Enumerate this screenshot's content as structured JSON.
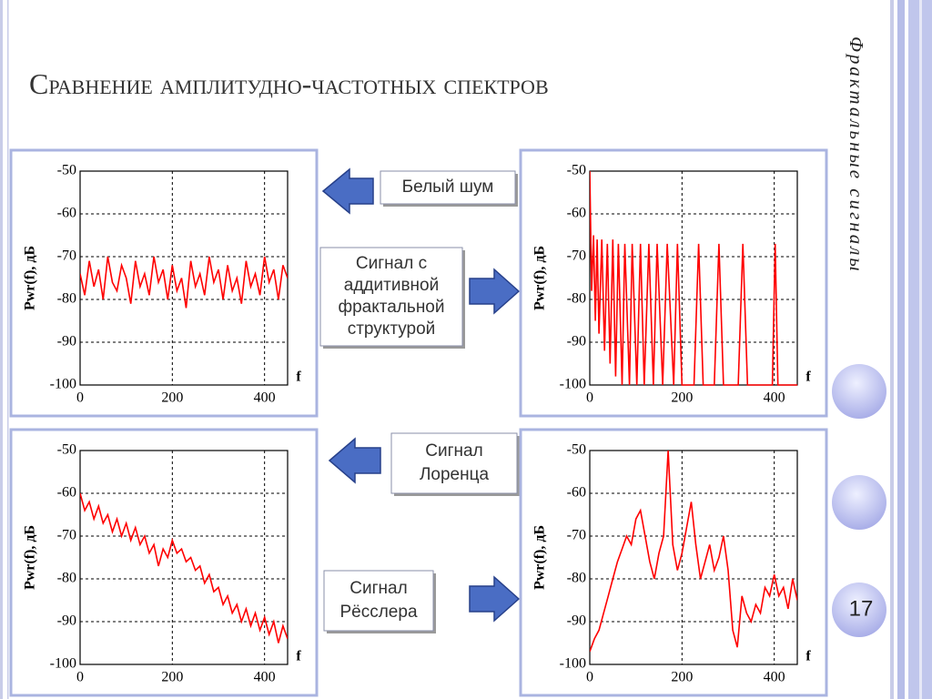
{
  "slide": {
    "title": "Сравнение амплитудно-частотных спектров",
    "side_title": "Фрактальные сигналы",
    "page_number": 17
  },
  "labels": [
    {
      "lines": [
        "Белый шум"
      ]
    },
    {
      "lines": [
        "Сигнал с",
        "аддитивной",
        "фрактальной",
        "структурой"
      ]
    },
    {
      "lines": [
        "Сигнал",
        "Лоренца"
      ]
    },
    {
      "lines": [
        "Сигнал",
        "Рёсслера"
      ]
    }
  ],
  "chart_data": [
    {
      "type": "line",
      "ylabel": "Pwr(f), дБ",
      "xlabel": "f",
      "color": "#ff0000",
      "grid": true,
      "xlim": [
        0,
        450
      ],
      "ylim": [
        -100,
        -50
      ],
      "xticks": [
        0,
        200,
        400
      ],
      "yticks": [
        -100,
        -90,
        -80,
        -70,
        -60,
        -50
      ],
      "x": [
        0,
        10,
        20,
        30,
        40,
        50,
        60,
        70,
        80,
        90,
        100,
        110,
        120,
        130,
        140,
        150,
        160,
        170,
        180,
        190,
        200,
        210,
        220,
        230,
        240,
        250,
        260,
        270,
        280,
        290,
        300,
        310,
        320,
        330,
        340,
        350,
        360,
        370,
        380,
        390,
        400,
        410,
        420,
        430,
        440,
        450
      ],
      "values": [
        -74,
        -79,
        -71,
        -77,
        -73,
        -80,
        -70,
        -76,
        -78,
        -72,
        -75,
        -81,
        -71,
        -77,
        -74,
        -79,
        -70,
        -76,
        -73,
        -80,
        -72,
        -78,
        -75,
        -82,
        -71,
        -77,
        -74,
        -79,
        -70,
        -76,
        -73,
        -80,
        -72,
        -78,
        -75,
        -81,
        -71,
        -77,
        -74,
        -79,
        -70,
        -76,
        -73,
        -80,
        -72,
        -75
      ]
    },
    {
      "type": "line",
      "ylabel": "Pwr(f), дБ",
      "xlabel": "f",
      "color": "#ff0000",
      "grid": true,
      "xlim": [
        0,
        450
      ],
      "ylim": [
        -100,
        -50
      ],
      "xticks": [
        0,
        200,
        400
      ],
      "yticks": [
        -100,
        -90,
        -80,
        -70,
        -60,
        -50
      ],
      "x": [
        0,
        4,
        8,
        12,
        16,
        20,
        26,
        32,
        38,
        44,
        50,
        56,
        62,
        70,
        76,
        86,
        92,
        102,
        110,
        118,
        128,
        138,
        146,
        158,
        168,
        182,
        190,
        200,
        226,
        236,
        246,
        270,
        280,
        290,
        322,
        332,
        342,
        396,
        402,
        408,
        450
      ],
      "values": [
        -50,
        -78,
        -65,
        -85,
        -66,
        -88,
        -66,
        -92,
        -67,
        -95,
        -66,
        -98,
        -67,
        -100,
        -67,
        -100,
        -67,
        -100,
        -67,
        -100,
        -67,
        -100,
        -67,
        -100,
        -67,
        -100,
        -67,
        -100,
        -100,
        -67,
        -100,
        -100,
        -67,
        -100,
        -100,
        -67,
        -100,
        -100,
        -67,
        -100,
        -100
      ]
    },
    {
      "type": "line",
      "ylabel": "Pwr(f), дБ",
      "xlabel": "f",
      "color": "#ff0000",
      "grid": true,
      "xlim": [
        0,
        450
      ],
      "ylim": [
        -100,
        -50
      ],
      "xticks": [
        0,
        200,
        400
      ],
      "yticks": [
        -100,
        -90,
        -80,
        -70,
        -60,
        -50
      ],
      "x": [
        0,
        10,
        20,
        30,
        40,
        50,
        60,
        70,
        80,
        90,
        100,
        110,
        120,
        130,
        140,
        150,
        160,
        170,
        180,
        190,
        200,
        210,
        220,
        230,
        240,
        250,
        260,
        270,
        280,
        290,
        300,
        310,
        320,
        330,
        340,
        350,
        360,
        370,
        380,
        390,
        400,
        410,
        420,
        430,
        440,
        450
      ],
      "values": [
        -60,
        -64,
        -62,
        -66,
        -63,
        -67,
        -65,
        -69,
        -66,
        -70,
        -67,
        -71,
        -68,
        -72,
        -70,
        -74,
        -72,
        -77,
        -73,
        -75,
        -71,
        -74,
        -73,
        -76,
        -75,
        -78,
        -77,
        -81,
        -79,
        -83,
        -82,
        -86,
        -84,
        -88,
        -86,
        -90,
        -87,
        -91,
        -88,
        -92,
        -89,
        -93,
        -90,
        -95,
        -91,
        -94
      ]
    },
    {
      "type": "line",
      "ylabel": "Pwr(f), дБ",
      "xlabel": "f",
      "color": "#ff0000",
      "grid": true,
      "xlim": [
        0,
        450
      ],
      "ylim": [
        -100,
        -50
      ],
      "xticks": [
        0,
        200,
        400
      ],
      "yticks": [
        -100,
        -90,
        -80,
        -70,
        -60,
        -50
      ],
      "x": [
        0,
        10,
        20,
        30,
        40,
        50,
        60,
        70,
        80,
        90,
        100,
        110,
        120,
        130,
        140,
        150,
        160,
        170,
        180,
        190,
        200,
        210,
        220,
        230,
        240,
        250,
        260,
        270,
        280,
        290,
        300,
        310,
        320,
        330,
        340,
        350,
        360,
        370,
        380,
        390,
        400,
        410,
        420,
        430,
        440,
        450
      ],
      "values": [
        -97,
        -94,
        -92,
        -88,
        -84,
        -80,
        -76,
        -73,
        -70,
        -72,
        -66,
        -64,
        -70,
        -76,
        -80,
        -74,
        -70,
        -50,
        -72,
        -78,
        -74,
        -68,
        -62,
        -72,
        -80,
        -76,
        -72,
        -78,
        -75,
        -70,
        -78,
        -92,
        -96,
        -84,
        -88,
        -90,
        -86,
        -88,
        -82,
        -84,
        -79,
        -84,
        -82,
        -87,
        -80,
        -85
      ]
    }
  ]
}
